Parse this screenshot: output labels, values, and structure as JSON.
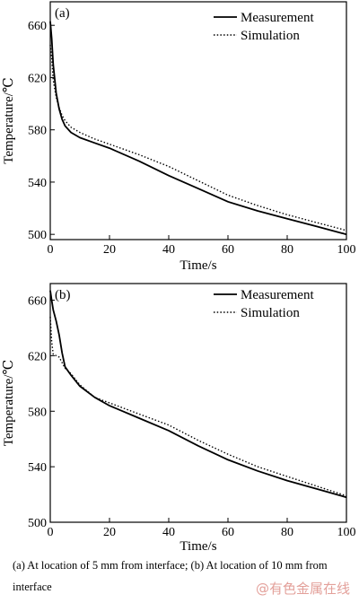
{
  "chart_data": [
    {
      "type": "line",
      "panel": "(a)",
      "xlabel": "Time/s",
      "ylabel": "Temperature/℃",
      "xlim": [
        0,
        100
      ],
      "ylim": [
        496,
        678
      ],
      "xticks": [
        0,
        20,
        40,
        60,
        80,
        100
      ],
      "yticks": [
        500,
        540,
        580,
        620,
        660
      ],
      "legend_position": "top-right",
      "series": [
        {
          "name": "Measurement",
          "style": "solid",
          "x": [
            0,
            0.5,
            1,
            2,
            3,
            4,
            5,
            7,
            10,
            15,
            20,
            30,
            40,
            50,
            60,
            70,
            80,
            90,
            100
          ],
          "y": [
            663,
            650,
            630,
            608,
            596,
            588,
            583,
            578,
            574,
            570,
            566,
            556,
            545,
            535,
            525,
            518,
            512,
            506,
            500
          ]
        },
        {
          "name": "Simulation",
          "style": "dotted",
          "x": [
            0,
            0.5,
            1,
            2,
            3,
            4,
            5,
            7,
            10,
            15,
            20,
            30,
            40,
            50,
            60,
            70,
            80,
            90,
            100
          ],
          "y": [
            645,
            635,
            618,
            605,
            597,
            591,
            587,
            582,
            578,
            573,
            569,
            561,
            552,
            541,
            530,
            522,
            515,
            509,
            503
          ]
        }
      ]
    },
    {
      "type": "line",
      "panel": "(b)",
      "xlabel": "Time/s",
      "ylabel": "Temperature/℃",
      "xlim": [
        0,
        100
      ],
      "ylim": [
        500,
        672
      ],
      "xticks": [
        0,
        20,
        40,
        60,
        80,
        100
      ],
      "yticks": [
        500,
        540,
        580,
        620,
        660
      ],
      "legend_position": "top-right",
      "series": [
        {
          "name": "Measurement",
          "style": "solid",
          "x": [
            0,
            0.5,
            1,
            2,
            3,
            4,
            5,
            7,
            10,
            15,
            20,
            30,
            40,
            50,
            60,
            70,
            80,
            90,
            100
          ],
          "y": [
            667,
            660,
            653,
            645,
            635,
            622,
            612,
            606,
            598,
            590,
            584,
            575,
            566,
            555,
            545,
            537,
            530,
            524,
            518
          ]
        },
        {
          "name": "Simulation",
          "style": "dotted",
          "x": [
            0,
            0.5,
            1,
            2,
            3,
            4,
            5,
            7,
            10,
            15,
            20,
            30,
            40,
            50,
            60,
            70,
            80,
            90,
            100
          ],
          "y": [
            648,
            630,
            621,
            620,
            619,
            615,
            611,
            607,
            599,
            590,
            586,
            578,
            570,
            559,
            549,
            540,
            533,
            526,
            519
          ]
        }
      ]
    }
  ],
  "caption": "(a) At location of 5 mm from interface; (b) At location of 10 mm from interface",
  "watermark": "@有色金属在线"
}
